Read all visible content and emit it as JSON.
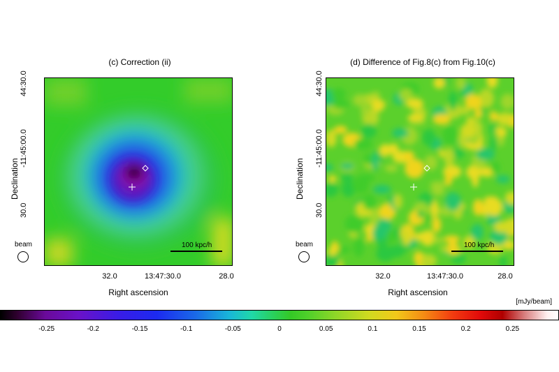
{
  "panels": [
    {
      "title": "(c) Correction (ii)",
      "y_title": "Declination",
      "x_title": "Right ascension",
      "y_ticks": [
        "44:30.0",
        "-11:45:00.0",
        "30.0"
      ],
      "x_ticks": [
        "32.0",
        "13:47:30.0",
        "28.0"
      ],
      "beam_label": "beam",
      "scale_label": "100 kpc/h"
    },
    {
      "title": "(d) Difference of Fig.8(c) from Fig.10(c)",
      "y_title": "Declination",
      "x_title": "Right ascension",
      "y_ticks": [
        "44:30.0",
        "-11:45:00.0",
        "30.0"
      ],
      "x_ticks": [
        "32.0",
        "13:47:30.0",
        "28.0"
      ],
      "beam_label": "beam",
      "scale_label": "100 kpc/h"
    }
  ],
  "colorbar": {
    "unit": "[mJy/beam]",
    "ticks": [
      "-0.25",
      "-0.2",
      "-0.15",
      "-0.1",
      "-0.05",
      "0",
      "0.05",
      "0.1",
      "0.15",
      "0.2",
      "0.25"
    ],
    "range": [
      -0.3,
      0.3
    ]
  },
  "chart_data": [
    {
      "type": "heatmap",
      "title": "(c) Correction (ii)",
      "xlabel": "Right ascension",
      "ylabel": "Declination",
      "x_ticks": [
        "32.0",
        "13:47:30.0",
        "28.0"
      ],
      "y_ticks": [
        "44:30.0",
        "-11:45:00.0",
        "30.0"
      ],
      "value_range": [
        -0.3,
        0.3
      ],
      "unit": "mJy/beam",
      "description_values": {
        "central_minimum": -0.28,
        "background": 0.0,
        "edge_max": 0.1
      }
    },
    {
      "type": "heatmap",
      "title": "(d) Difference of Fig.8(c) from Fig.10(c)",
      "xlabel": "Right ascension",
      "ylabel": "Declination",
      "x_ticks": [
        "32.0",
        "13:47:30.0",
        "28.0"
      ],
      "y_ticks": [
        "44:30.0",
        "-11:45:00.0",
        "30.0"
      ],
      "value_range": [
        -0.3,
        0.3
      ],
      "unit": "mJy/beam",
      "description_values": {
        "typical_min": -0.03,
        "typical_max": 0.1
      }
    }
  ]
}
